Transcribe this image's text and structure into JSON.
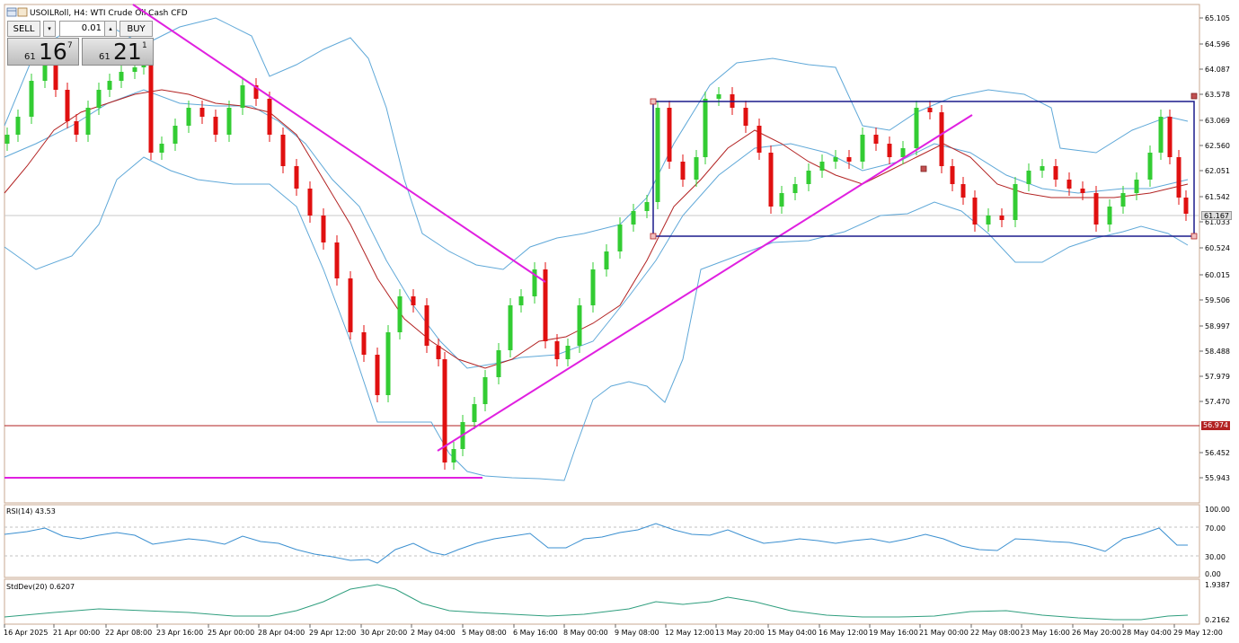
{
  "window": {
    "title": "USOILRoll, H4:  WTI Crude Oil Cash CFD"
  },
  "trade_panel": {
    "sell_label": "SELL",
    "buy_label": "BUY",
    "lot_value": "0.01",
    "sell_price": {
      "prefix": "61",
      "big": "16",
      "sup": "7"
    },
    "buy_price": {
      "prefix": "61",
      "big": "21",
      "sup": "1"
    }
  },
  "price_axis": {
    "ticks": [
      "65.105",
      "64.596",
      "64.087",
      "63.578",
      "63.069",
      "62.560",
      "62.051",
      "61.542",
      "61.033",
      "60.524",
      "60.015",
      "59.506",
      "58.997",
      "58.488",
      "57.979",
      "57.470",
      "56.452",
      "55.943"
    ],
    "current_price": "61.167",
    "current_price_color": "#d8d8d8",
    "horizontal_level": "56.974",
    "horizontal_level_color": "#b22222"
  },
  "rsi_panel": {
    "label": "RSI(14) 43.53",
    "ticks": [
      "100.00",
      "70.00",
      "30.00",
      "0.00"
    ]
  },
  "stddev_panel": {
    "label": "StdDev(20) 0.6207",
    "ticks": [
      "1.9387",
      "0.2162"
    ]
  },
  "time_axis": {
    "labels": [
      "16 Apr 2025",
      "21 Apr 00:00",
      "22 Apr 08:00",
      "23 Apr 16:00",
      "25 Apr 00:00",
      "28 Apr 04:00",
      "29 Apr 12:00",
      "30 Apr 20:00",
      "2 May 04:00",
      "5 May 08:00",
      "6 May 16:00",
      "8 May 00:00",
      "9 May 08:00",
      "12 May 12:00",
      "13 May 20:00",
      "15 May 04:00",
      "16 May 12:00",
      "19 May 16:00",
      "21 May 00:00",
      "22 May 08:00",
      "23 May 16:00",
      "26 May 20:00",
      "28 May 04:00",
      "29 May 12:00"
    ]
  },
  "colors": {
    "bull": "#33cc33",
    "bear": "#e01010",
    "bollinger": "#5fa8d8",
    "ma": "#b22222",
    "trendline": "#e020e0",
    "range_box": "#1a1a8c",
    "rsi_line": "#3a8fd0",
    "stddev_line": "#2f9e7e"
  }
}
